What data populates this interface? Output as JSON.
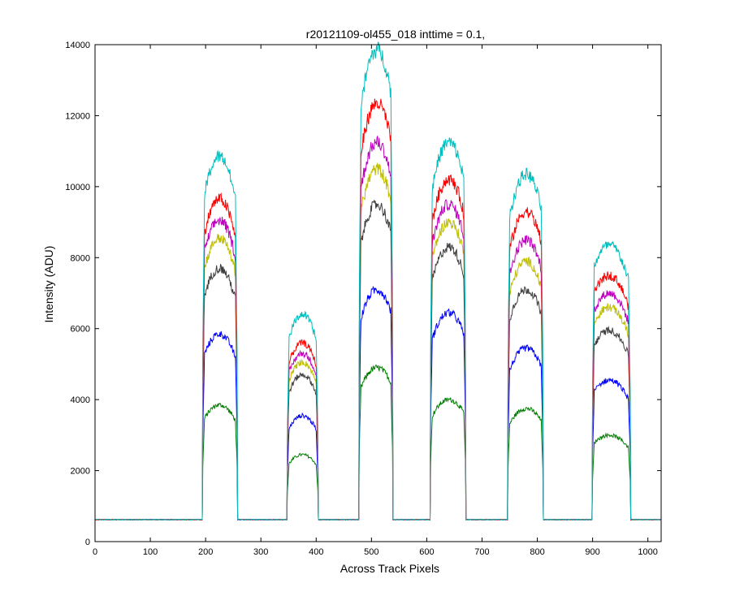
{
  "chart_data": {
    "type": "line",
    "title": "r20121109-ol455_018 inttime = 0.1,",
    "xlabel": "Across Track Pixels",
    "ylabel": "Intensity (ADU)",
    "xlim": [
      0,
      1024
    ],
    "ylim": [
      0,
      14000
    ],
    "grid": false,
    "x_ticks": [
      0,
      100,
      200,
      300,
      400,
      500,
      600,
      700,
      800,
      900,
      1000
    ],
    "y_ticks": [
      0,
      2000,
      4000,
      6000,
      8000,
      10000,
      12000,
      14000
    ],
    "baseline": 620,
    "bands": [
      {
        "start": 195,
        "end": 257,
        "center": 225
      },
      {
        "start": 348,
        "end": 403,
        "center": 375
      },
      {
        "start": 478,
        "end": 538,
        "center": 510
      },
      {
        "start": 607,
        "end": 670,
        "center": 640
      },
      {
        "start": 747,
        "end": 810,
        "center": 780
      },
      {
        "start": 900,
        "end": 968,
        "center": 930
      }
    ],
    "series": [
      {
        "color": "#007f00",
        "peaks": [
          3850,
          2450,
          4900,
          4000,
          3750,
          3000
        ]
      },
      {
        "color": "#0000ff",
        "peaks": [
          5850,
          3550,
          7100,
          6450,
          5450,
          4550
        ]
      },
      {
        "color": "#3f3f3f",
        "peaks": [
          7700,
          4700,
          9500,
          8300,
          7100,
          5950
        ]
      },
      {
        "color": "#bfbf00",
        "peaks": [
          8550,
          5050,
          10500,
          9000,
          7900,
          6600
        ]
      },
      {
        "color": "#bf00bf",
        "peaks": [
          9050,
          5300,
          11250,
          9500,
          8500,
          7000
        ]
      },
      {
        "color": "#ff0000",
        "peaks": [
          9650,
          5600,
          12350,
          10200,
          9300,
          7500
        ]
      },
      {
        "color": "#00bfbf",
        "peaks": [
          10850,
          6400,
          13850,
          11250,
          10350,
          8350
        ]
      }
    ]
  }
}
